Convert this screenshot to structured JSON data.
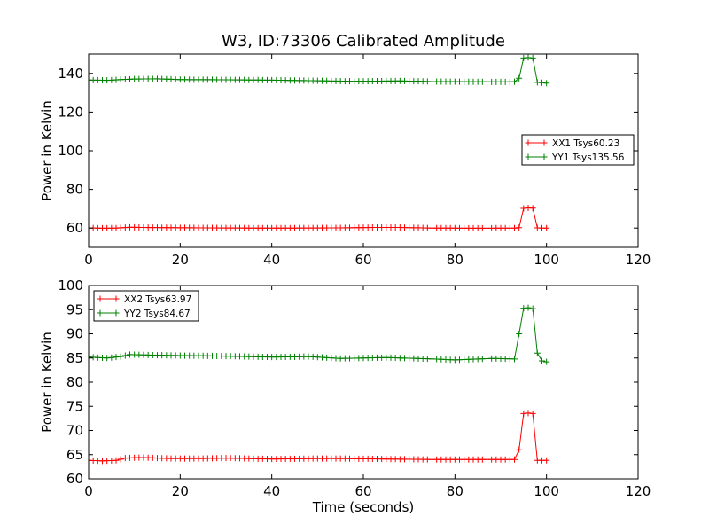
{
  "chart_data": {
    "title": "W3, ID:73306 Calibrated Amplitude",
    "type": "line",
    "xlabel": "Time (seconds)",
    "panels": [
      {
        "ylabel": "Power in Kelvin",
        "xlim": [
          0,
          120
        ],
        "ylim": [
          50,
          150
        ],
        "xticks": [
          0,
          20,
          40,
          60,
          80,
          100,
          120
        ],
        "yticks": [
          60,
          80,
          100,
          120,
          140
        ],
        "legend_position": "center-right",
        "series": [
          {
            "name": "XX1 Tsys60.23",
            "color": "#ff0000",
            "points": [
              [
                0,
                60.1
              ],
              [
                3,
                59.9
              ],
              [
                6,
                60.0
              ],
              [
                9,
                60.4
              ],
              [
                12,
                60.3
              ],
              [
                18,
                60.2
              ],
              [
                25,
                60.1
              ],
              [
                35,
                60.0
              ],
              [
                45,
                60.0
              ],
              [
                55,
                60.1
              ],
              [
                62,
                60.3
              ],
              [
                68,
                60.3
              ],
              [
                75,
                60.0
              ],
              [
                85,
                59.9
              ],
              [
                93,
                60.0
              ],
              [
                94,
                60.2
              ],
              [
                95,
                70.2
              ],
              [
                96,
                70.4
              ],
              [
                97,
                70.3
              ],
              [
                98,
                60.1
              ],
              [
                99,
                60.0
              ],
              [
                100,
                60.0
              ]
            ]
          },
          {
            "name": "YY1 Tsys135.56",
            "color": "#008000",
            "points": [
              [
                0,
                136.6
              ],
              [
                4,
                136.4
              ],
              [
                7,
                136.8
              ],
              [
                10,
                137.1
              ],
              [
                15,
                137.2
              ],
              [
                20,
                136.8
              ],
              [
                30,
                136.7
              ],
              [
                40,
                136.5
              ],
              [
                50,
                136.2
              ],
              [
                58,
                135.9
              ],
              [
                62,
                136.0
              ],
              [
                68,
                136.1
              ],
              [
                75,
                135.8
              ],
              [
                82,
                135.7
              ],
              [
                90,
                135.6
              ],
              [
                93,
                135.7
              ],
              [
                94,
                137.5
              ],
              [
                95,
                148.0
              ],
              [
                96,
                148.2
              ],
              [
                97,
                148.0
              ],
              [
                98,
                135.4
              ],
              [
                99,
                135.2
              ],
              [
                100,
                135.0
              ]
            ]
          }
        ]
      },
      {
        "ylabel": "Power in Kelvin",
        "xlim": [
          0,
          120
        ],
        "ylim": [
          60,
          100
        ],
        "xticks": [
          0,
          20,
          40,
          60,
          80,
          100,
          120
        ],
        "yticks": [
          60,
          65,
          70,
          75,
          80,
          85,
          90,
          95,
          100
        ],
        "legend_position": "top-left",
        "series": [
          {
            "name": "XX2 Tsys63.97",
            "color": "#ff0000",
            "points": [
              [
                0,
                63.8
              ],
              [
                3,
                63.7
              ],
              [
                6,
                63.8
              ],
              [
                8,
                64.3
              ],
              [
                12,
                64.4
              ],
              [
                18,
                64.2
              ],
              [
                25,
                64.2
              ],
              [
                30,
                64.3
              ],
              [
                40,
                64.1
              ],
              [
                50,
                64.2
              ],
              [
                55,
                64.2
              ],
              [
                65,
                64.1
              ],
              [
                75,
                64.0
              ],
              [
                85,
                64.0
              ],
              [
                93,
                64.0
              ],
              [
                94,
                66.0
              ],
              [
                95,
                73.5
              ],
              [
                96,
                73.6
              ],
              [
                97,
                73.5
              ],
              [
                98,
                63.8
              ],
              [
                99,
                63.8
              ],
              [
                100,
                63.8
              ]
            ]
          },
          {
            "name": "YY2 Tsys84.67",
            "color": "#008000",
            "points": [
              [
                0,
                85.2
              ],
              [
                4,
                85.0
              ],
              [
                7,
                85.3
              ],
              [
                9,
                85.7
              ],
              [
                14,
                85.6
              ],
              [
                20,
                85.5
              ],
              [
                30,
                85.4
              ],
              [
                40,
                85.2
              ],
              [
                48,
                85.3
              ],
              [
                55,
                84.9
              ],
              [
                65,
                85.1
              ],
              [
                75,
                84.8
              ],
              [
                80,
                84.6
              ],
              [
                88,
                84.9
              ],
              [
                93,
                84.8
              ],
              [
                94,
                90.0
              ],
              [
                95,
                95.3
              ],
              [
                96,
                95.4
              ],
              [
                97,
                95.2
              ],
              [
                98,
                86.0
              ],
              [
                99,
                84.4
              ],
              [
                100,
                84.2
              ]
            ]
          }
        ]
      }
    ]
  }
}
